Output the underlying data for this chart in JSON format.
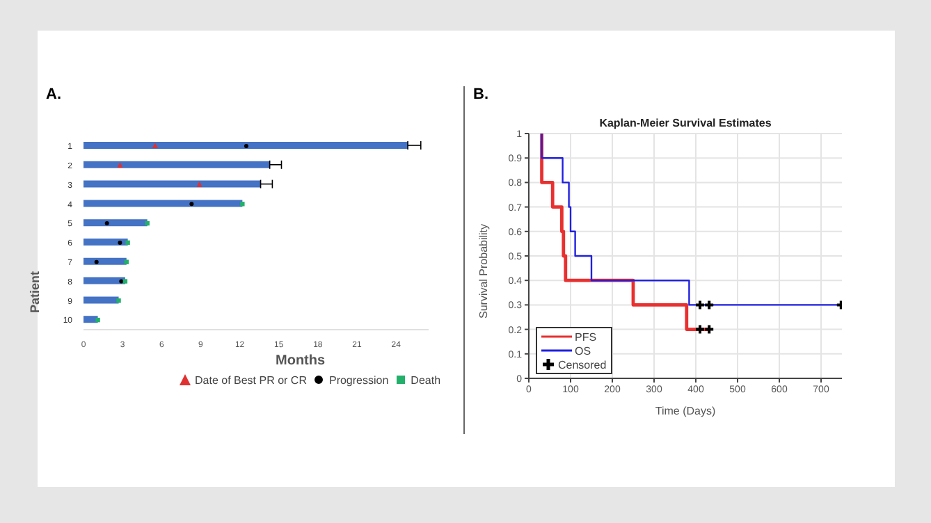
{
  "chart_data": [
    {
      "type": "bar",
      "orientation": "horizontal",
      "title": "A.",
      "xlabel": "Months",
      "ylabel": "Patient",
      "categories": [
        "1",
        "2",
        "3",
        "4",
        "5",
        "6",
        "7",
        "8",
        "9",
        "10"
      ],
      "xlim": [
        0,
        26.5
      ],
      "xticks": [
        0,
        3,
        6,
        9,
        12,
        15,
        18,
        21,
        24
      ],
      "legend": "bottom",
      "grid": false,
      "series": [
        {
          "type": "bar",
          "color": "#4472c4",
          "values": [
            24.9,
            14.3,
            13.6,
            12.2,
            4.9,
            3.4,
            3.3,
            3.2,
            2.7,
            1.1
          ],
          "errors": [
            [
              24.9,
              25.9
            ],
            [
              14.3,
              15.2
            ],
            [
              13.6,
              14.5
            ],
            null,
            null,
            null,
            null,
            null,
            null,
            null
          ]
        },
        {
          "type": "scatter",
          "name": "Date of Best PR or CR",
          "color": "#e03030",
          "marker": "triangle",
          "values": [
            5.5,
            2.8,
            8.9,
            null,
            null,
            null,
            null,
            null,
            null,
            null
          ]
        },
        {
          "type": "scatter",
          "name": "Progression",
          "color": "#000000",
          "marker": "circle",
          "values": [
            12.5,
            null,
            null,
            8.3,
            1.8,
            2.8,
            1.0,
            2.9,
            null,
            null
          ]
        },
        {
          "type": "scatter",
          "name": "Death",
          "color": "#22b06a",
          "marker": "square",
          "values": [
            null,
            null,
            null,
            12.2,
            4.9,
            3.4,
            3.3,
            3.2,
            2.7,
            1.1
          ]
        }
      ]
    },
    {
      "type": "step",
      "title": "Kaplan-Meier Survival Estimates",
      "annotations": [
        "B."
      ],
      "xlabel": "Time (Days)",
      "ylabel": "Survival Probability",
      "xlim": [
        0,
        750
      ],
      "xticks": [
        0,
        100,
        200,
        300,
        400,
        500,
        600,
        700
      ],
      "ylim": [
        0,
        1
      ],
      "yticks": [
        0,
        0.1,
        0.2,
        0.3,
        0.4,
        0.5,
        0.6,
        0.7,
        0.8,
        0.9,
        1
      ],
      "grid": true,
      "legend": "bottom left",
      "series": [
        {
          "name": "PFS",
          "color": "#e83030",
          "x": [
            31,
            31,
            57,
            79,
            83,
            88,
            250,
            378,
            432
          ],
          "values": [
            1,
            0.8,
            0.7,
            0.6,
            0.5,
            0.4,
            0.3,
            0.2,
            0.2
          ]
        },
        {
          "name": "OS",
          "color": "#2020e0",
          "x": [
            31,
            31,
            81,
            96,
            100,
            111,
            150,
            384,
            748
          ],
          "values": [
            1,
            0.9,
            0.8,
            0.7,
            0.6,
            0.5,
            0.4,
            0.3,
            0.3
          ]
        },
        {
          "type": "scatter",
          "name": "Censored",
          "color": "#000000",
          "marker": "cross",
          "x": [
            410,
            432,
            410,
            432,
            748
          ],
          "values": [
            0.2,
            0.2,
            0.3,
            0.3,
            0.3
          ]
        }
      ]
    }
  ]
}
